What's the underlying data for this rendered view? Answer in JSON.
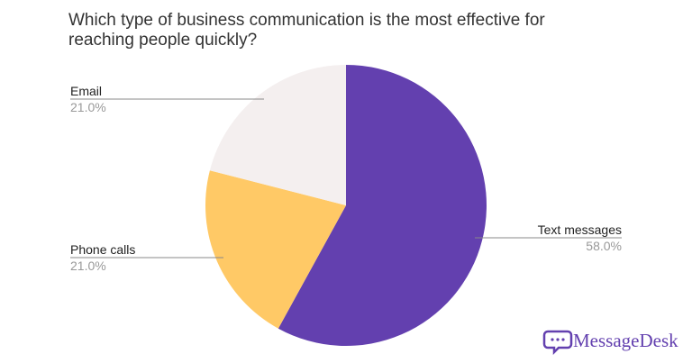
{
  "chart_data": {
    "type": "pie",
    "title": "Which type of business communication is the most effective for reaching people quickly?",
    "categories": [
      "Text messages",
      "Phone calls",
      "Email"
    ],
    "values": [
      58,
      21,
      21
    ],
    "value_labels": [
      "58.0%",
      "21.0%",
      "21.0%"
    ],
    "colors": [
      "#6340af",
      "#ffc966",
      "#f4efef"
    ]
  },
  "brand": "MessageDesk"
}
